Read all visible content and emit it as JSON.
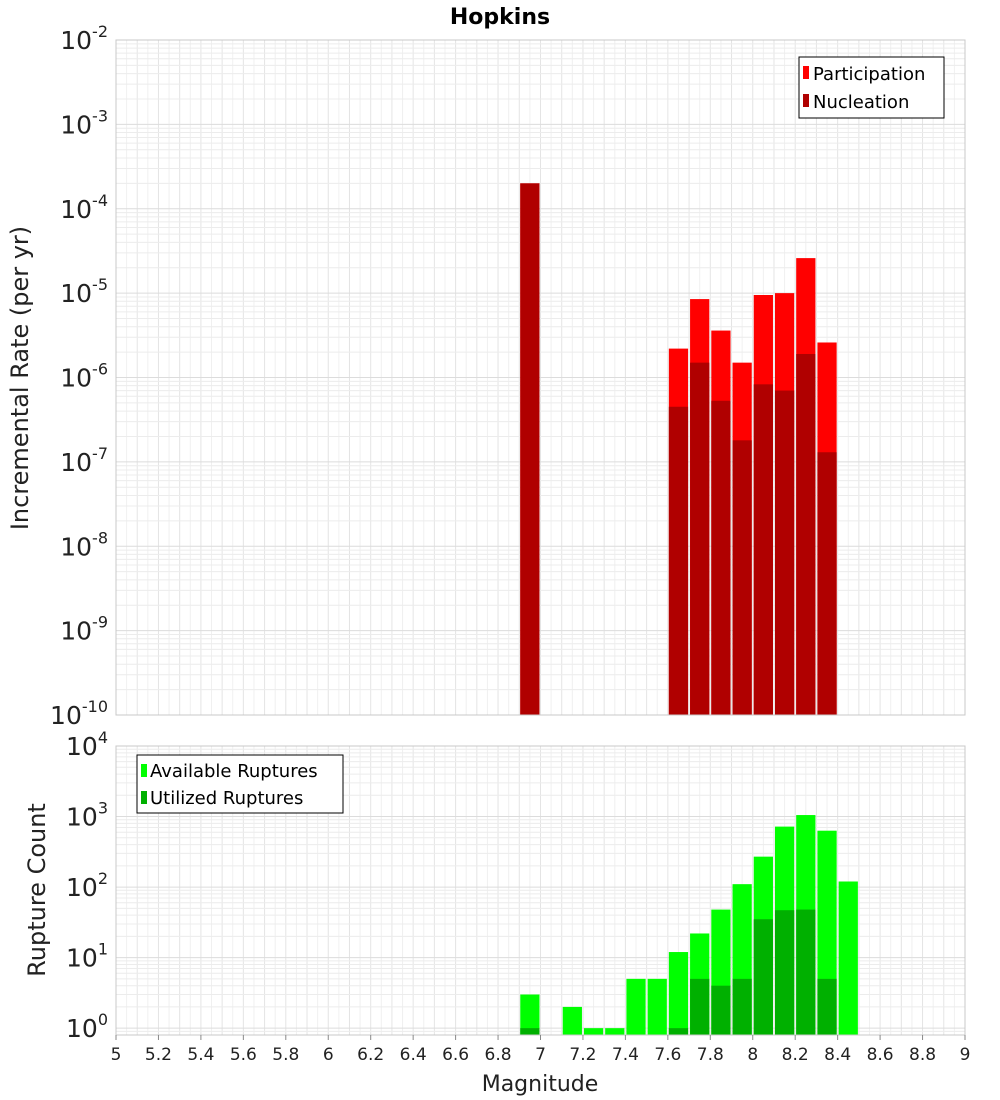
{
  "chart_data": [
    {
      "type": "bar",
      "title": "Hopkins",
      "ylabel": "Incremental Rate (per yr)",
      "xlabel": "",
      "xlim": [
        5,
        9
      ],
      "ylim": [
        1e-10,
        0.01
      ],
      "yscale": "log",
      "y_ticks": [
        {
          "base": "10",
          "exp": "-10"
        },
        {
          "base": "10",
          "exp": "-9"
        },
        {
          "base": "10",
          "exp": "-8"
        },
        {
          "base": "10",
          "exp": "-7"
        },
        {
          "base": "10",
          "exp": "-6"
        },
        {
          "base": "10",
          "exp": "-5"
        },
        {
          "base": "10",
          "exp": "-4"
        },
        {
          "base": "10",
          "exp": "-3"
        },
        {
          "base": "10",
          "exp": "-2"
        }
      ],
      "grid": true,
      "legend_position": "top-right",
      "series": [
        {
          "name": "Participation",
          "color": "#ff0000",
          "x": [
            6.95,
            7.65,
            7.75,
            7.85,
            7.95,
            8.05,
            8.15,
            8.25,
            8.35
          ],
          "values": [
            0.0002,
            2.2e-06,
            8.5e-06,
            3.6e-06,
            1.5e-06,
            9.5e-06,
            1e-05,
            2.6e-05,
            2.6e-06
          ]
        },
        {
          "name": "Nucleation",
          "color": "#b00000",
          "x": [
            6.95,
            7.65,
            7.75,
            7.85,
            7.95,
            8.05,
            8.15,
            8.25,
            8.35
          ],
          "values": [
            0.0002,
            4.5e-07,
            1.5e-06,
            5.3e-07,
            1.8e-07,
            8.3e-07,
            7e-07,
            1.9e-06,
            1.3e-07
          ]
        }
      ]
    },
    {
      "type": "bar",
      "title": "",
      "ylabel": "Rupture Count",
      "xlabel": "Magnitude",
      "xlim": [
        5,
        9
      ],
      "ylim": [
        0.8,
        10000
      ],
      "yscale": "log",
      "y_ticks": [
        {
          "base": "10",
          "exp": "0",
          "value": 1
        },
        {
          "base": "10",
          "exp": "1",
          "value": 10
        },
        {
          "base": "10",
          "exp": "2",
          "value": 100
        },
        {
          "base": "10",
          "exp": "3",
          "value": 1000
        },
        {
          "base": "10",
          "exp": "4",
          "value": 10000
        }
      ],
      "x_ticks": [
        "5",
        "5.2",
        "5.4",
        "5.6",
        "5.8",
        "6",
        "6.2",
        "6.4",
        "6.6",
        "6.8",
        "7",
        "7.2",
        "7.4",
        "7.6",
        "7.8",
        "8",
        "8.2",
        "8.4",
        "8.6",
        "8.8",
        "9"
      ],
      "grid": true,
      "legend_position": "top-left",
      "series": [
        {
          "name": "Available Ruptures",
          "color": "#00ff00",
          "x": [
            6.95,
            7.15,
            7.25,
            7.35,
            7.45,
            7.55,
            7.65,
            7.75,
            7.85,
            7.95,
            8.05,
            8.15,
            8.25,
            8.35,
            8.45
          ],
          "values": [
            3,
            2,
            1,
            1,
            5,
            5,
            12,
            22,
            48,
            110,
            270,
            720,
            1050,
            630,
            120
          ]
        },
        {
          "name": "Utilized Ruptures",
          "color": "#00b000",
          "x": [
            6.95,
            7.65,
            7.75,
            7.85,
            7.95,
            8.05,
            8.15,
            8.25,
            8.35
          ],
          "values": [
            1,
            1,
            5,
            4,
            5,
            35,
            47,
            48,
            5
          ]
        }
      ]
    }
  ]
}
